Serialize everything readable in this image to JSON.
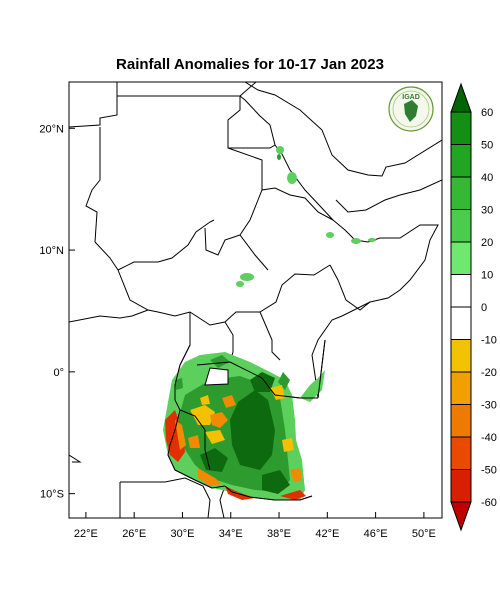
{
  "title": "Rainfall Anomalies for 10-17 Jan 2023",
  "logo_text": "IGAD",
  "lat_ticks": [
    {
      "label": "20°N",
      "lat": 20
    },
    {
      "label": "10°N",
      "lat": 10
    },
    {
      "label": "0°",
      "lat": 0
    },
    {
      "label": "10°S",
      "lat": -10
    }
  ],
  "lon_ticks": [
    {
      "label": "22°E",
      "lon": 22
    },
    {
      "label": "26°E",
      "lon": 26
    },
    {
      "label": "30°E",
      "lon": 30
    },
    {
      "label": "34°E",
      "lon": 34
    },
    {
      "label": "38°E",
      "lon": 38
    },
    {
      "label": "42°E",
      "lon": 42
    },
    {
      "label": "46°E",
      "lon": 46
    },
    {
      "label": "50°E",
      "lon": 50
    }
  ],
  "colorbar": {
    "labels": [
      "60",
      "50",
      "40",
      "30",
      "20",
      "10",
      "0",
      "-10",
      "-20",
      "-30",
      "-40",
      "-50",
      "-60"
    ],
    "colors": [
      "#006400",
      "#138f13",
      "#22a522",
      "#35b935",
      "#4ccc4c",
      "#6ee86e",
      "#ffffff",
      "#ffffff",
      "#f2c200",
      "#f2a000",
      "#ef7a00",
      "#e84a00",
      "#d82000",
      "#c00000"
    ]
  },
  "legend_colors": {
    "wet_dark": "#0e6a0e",
    "wet_mid": "#2e9b2e",
    "wet_light": "#5ccf5c",
    "dry_light": "#f5c000",
    "dry_mid": "#f08a00",
    "dry_strong": "#e03000"
  }
}
